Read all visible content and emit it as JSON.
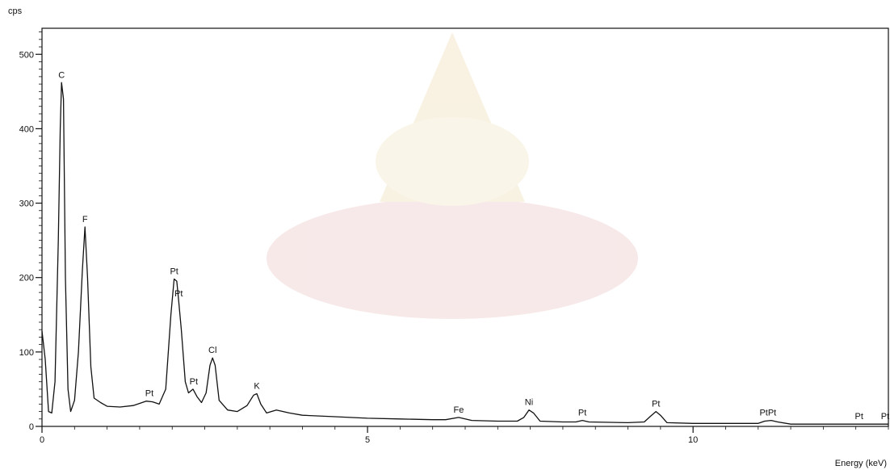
{
  "chart_data": {
    "type": "line",
    "title": "",
    "xlabel": "Energy (keV)",
    "ylabel": "cps",
    "xlim": [
      0,
      13.0
    ],
    "ylim": [
      0,
      535
    ],
    "x_ticks": [
      0,
      5,
      10
    ],
    "y_ticks": [
      0,
      100,
      200,
      300,
      400,
      500
    ],
    "grid": false,
    "series": [
      {
        "values_xy": [
          [
            0.0,
            128
          ],
          [
            0.05,
            90
          ],
          [
            0.1,
            20
          ],
          [
            0.15,
            18
          ],
          [
            0.2,
            60
          ],
          [
            0.25,
            250
          ],
          [
            0.28,
            400
          ],
          [
            0.3,
            462
          ],
          [
            0.33,
            440
          ],
          [
            0.36,
            200
          ],
          [
            0.4,
            50
          ],
          [
            0.44,
            20
          ],
          [
            0.5,
            35
          ],
          [
            0.56,
            100
          ],
          [
            0.62,
            210
          ],
          [
            0.66,
            268
          ],
          [
            0.7,
            200
          ],
          [
            0.75,
            80
          ],
          [
            0.8,
            38
          ],
          [
            0.9,
            32
          ],
          [
            1.0,
            27
          ],
          [
            1.2,
            26
          ],
          [
            1.4,
            28
          ],
          [
            1.6,
            34
          ],
          [
            1.7,
            33
          ],
          [
            1.8,
            30
          ],
          [
            1.9,
            50
          ],
          [
            1.98,
            150
          ],
          [
            2.03,
            198
          ],
          [
            2.07,
            195
          ],
          [
            2.1,
            168
          ],
          [
            2.14,
            130
          ],
          [
            2.2,
            60
          ],
          [
            2.25,
            45
          ],
          [
            2.32,
            50
          ],
          [
            2.38,
            40
          ],
          [
            2.45,
            32
          ],
          [
            2.52,
            45
          ],
          [
            2.58,
            82
          ],
          [
            2.62,
            92
          ],
          [
            2.66,
            82
          ],
          [
            2.72,
            35
          ],
          [
            2.85,
            22
          ],
          [
            3.0,
            20
          ],
          [
            3.15,
            28
          ],
          [
            3.25,
            42
          ],
          [
            3.3,
            44
          ],
          [
            3.36,
            30
          ],
          [
            3.45,
            18
          ],
          [
            3.6,
            22
          ],
          [
            3.8,
            18
          ],
          [
            4.0,
            15
          ],
          [
            4.5,
            13
          ],
          [
            5.0,
            11
          ],
          [
            5.5,
            10
          ],
          [
            6.0,
            9
          ],
          [
            6.2,
            9
          ],
          [
            6.4,
            12
          ],
          [
            6.6,
            8
          ],
          [
            7.0,
            7
          ],
          [
            7.3,
            7
          ],
          [
            7.4,
            12
          ],
          [
            7.48,
            22
          ],
          [
            7.55,
            18
          ],
          [
            7.65,
            7
          ],
          [
            8.0,
            6
          ],
          [
            8.2,
            6
          ],
          [
            8.3,
            8
          ],
          [
            8.4,
            6
          ],
          [
            9.0,
            5
          ],
          [
            9.25,
            6
          ],
          [
            9.35,
            14
          ],
          [
            9.43,
            20
          ],
          [
            9.5,
            15
          ],
          [
            9.6,
            5
          ],
          [
            10.0,
            4
          ],
          [
            11.0,
            4
          ],
          [
            11.1,
            7
          ],
          [
            11.2,
            8
          ],
          [
            11.3,
            6
          ],
          [
            11.5,
            3
          ],
          [
            12.0,
            3
          ],
          [
            12.8,
            3
          ],
          [
            13.0,
            3
          ]
        ]
      }
    ],
    "annotations": [
      {
        "text": "C",
        "x": 0.3,
        "y": 462
      },
      {
        "text": "F",
        "x": 0.66,
        "y": 268
      },
      {
        "text": "Pt",
        "x": 1.65,
        "y": 34
      },
      {
        "text": "Pt",
        "x": 2.03,
        "y": 198
      },
      {
        "text": "Pt",
        "x": 2.1,
        "y": 168
      },
      {
        "text": "Pt",
        "x": 2.33,
        "y": 50
      },
      {
        "text": "Cl",
        "x": 2.62,
        "y": 92
      },
      {
        "text": "K",
        "x": 3.3,
        "y": 44
      },
      {
        "text": "Fe",
        "x": 6.4,
        "y": 12
      },
      {
        "text": "Ni",
        "x": 7.48,
        "y": 22
      },
      {
        "text": "Pt",
        "x": 8.3,
        "y": 8
      },
      {
        "text": "Pt",
        "x": 9.43,
        "y": 20
      },
      {
        "text": "PtPt",
        "x": 11.15,
        "y": 8
      },
      {
        "text": "Pt",
        "x": 12.55,
        "y": 3
      },
      {
        "text": "Pt",
        "x": 12.95,
        "y": 3
      }
    ],
    "colors": {
      "line": "#111111",
      "background": "#ffffff",
      "watermark": "#e9c9c9"
    }
  }
}
